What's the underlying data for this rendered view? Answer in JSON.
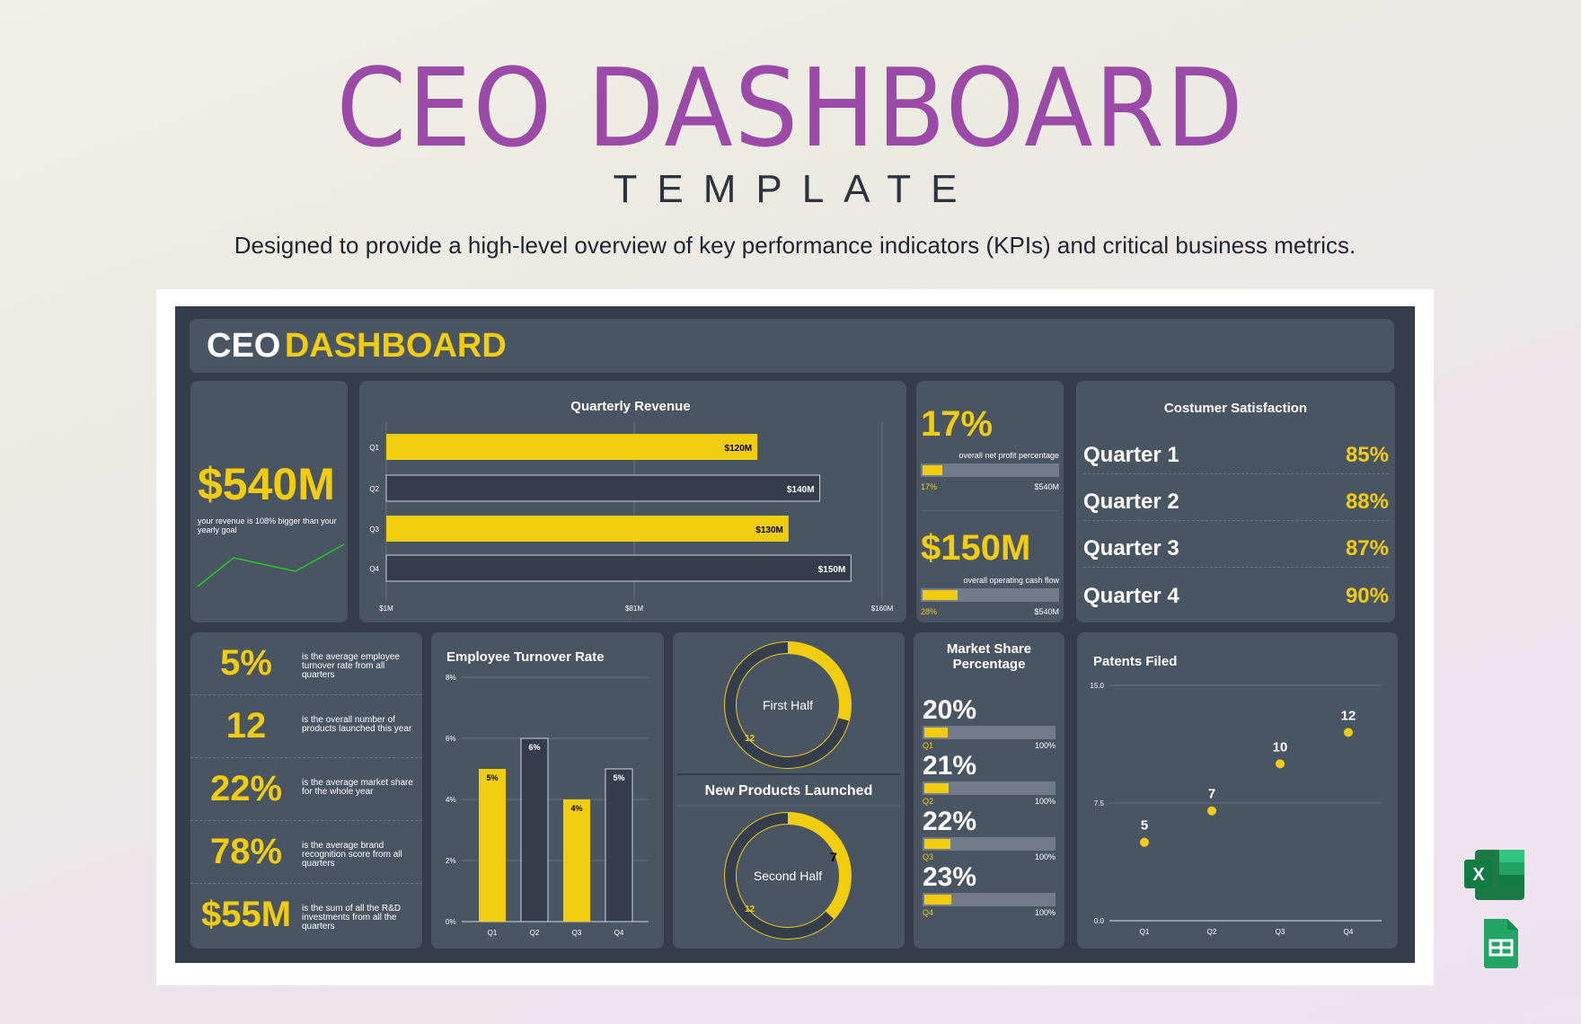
{
  "page": {
    "title": "CEO DASHBOARD",
    "subtitle": "TEMPLATE",
    "tagline": "Designed to provide a high-level overview of key performance indicators (KPIs) and critical business metrics."
  },
  "header": {
    "title_a": "CEO",
    "title_b": "DASHBOARD"
  },
  "colors": {
    "accent": "#f2cc0f",
    "dark": "#343d4c",
    "card": "#4a5563",
    "title": "#9b4aa8",
    "trend": "#22cc22"
  },
  "revenue_card": {
    "value": "$540M",
    "desc": "your revenue is 108% bigger than your yearly goal"
  },
  "profit": {
    "value": "17%",
    "desc": "overall net profit percentage",
    "fill": 0.17,
    "left": "17%",
    "right": "$540M"
  },
  "cashflow": {
    "value": "$150M",
    "desc": "overall  operating cash flow",
    "fill": 0.28,
    "left": "28%",
    "right": "$540M"
  },
  "satisfaction": {
    "title": "Costumer Satisfaction",
    "rows": [
      {
        "label": "Quarter 1",
        "value": "85%"
      },
      {
        "label": "Quarter 2",
        "value": "88%"
      },
      {
        "label": "Quarter 3",
        "value": "87%"
      },
      {
        "label": "Quarter 4",
        "value": "90%"
      }
    ]
  },
  "kpis": [
    {
      "value": "5%",
      "desc": "is the average employee turnover rate from all quarters"
    },
    {
      "value": "12",
      "desc": "is the overall number of products launched this year"
    },
    {
      "value": "22%",
      "desc": "is the average market share for the whole year"
    },
    {
      "value": "78%",
      "desc": "is the average brand recognition score from all quarters"
    },
    {
      "value": "$55M",
      "desc": "is the sum of all the R&D investments from all the quarters"
    }
  ],
  "products": {
    "title": "New Products Launched",
    "first_half": {
      "label": "First Half",
      "dark_label": "12",
      "yellow_fraction": 0.29
    },
    "second_half": {
      "label": "Second Half",
      "yellow_label": "7",
      "dark_label": "12",
      "yellow_fraction": 0.37
    }
  },
  "market_share": {
    "title_1": "Market Share",
    "title_2": "Percentage",
    "items": [
      {
        "value": "20%",
        "q": "Q1",
        "max": "100%",
        "fill": 0.2
      },
      {
        "value": "21%",
        "q": "Q2",
        "max": "100%",
        "fill": 0.21
      },
      {
        "value": "22%",
        "q": "Q3",
        "max": "100%",
        "fill": 0.22
      },
      {
        "value": "23%",
        "q": "Q4",
        "max": "100%",
        "fill": 0.23
      }
    ]
  },
  "chart_data": [
    {
      "type": "bar",
      "orientation": "horizontal",
      "title": "Quarterly Revenue",
      "categories": [
        "Q1",
        "Q2",
        "Q3",
        "Q4"
      ],
      "values": [
        120,
        140,
        130,
        150
      ],
      "data_labels": [
        "$120M",
        "$140M",
        "$130M",
        "$150M"
      ],
      "xlim": [
        1,
        160
      ],
      "ticks": [
        "$1M",
        "$81M",
        "$160M"
      ],
      "grid": true
    },
    {
      "type": "bar",
      "title": "Employee Turnover Rate",
      "categories": [
        "Q1",
        "Q2",
        "Q3",
        "Q4"
      ],
      "values": [
        5,
        6,
        4,
        5
      ],
      "data_labels": [
        "5%",
        "6%",
        "4%",
        "5%"
      ],
      "ylim": [
        0,
        8
      ],
      "ticks": [
        "0%",
        "2%",
        "4%",
        "6%",
        "8%"
      ],
      "grid": true
    },
    {
      "type": "scatter",
      "title": "Patents Filed",
      "categories": [
        "Q1",
        "Q2",
        "Q3",
        "Q4"
      ],
      "values": [
        5,
        7,
        10,
        12
      ],
      "data_labels": [
        "5",
        "7",
        "10",
        "12"
      ],
      "ylim": [
        0,
        15
      ],
      "ticks": [
        "0.0",
        "7.5",
        "15.0"
      ],
      "grid": true
    }
  ],
  "icons": {
    "excel": "excel-icon",
    "sheets": "google-sheets-icon"
  }
}
